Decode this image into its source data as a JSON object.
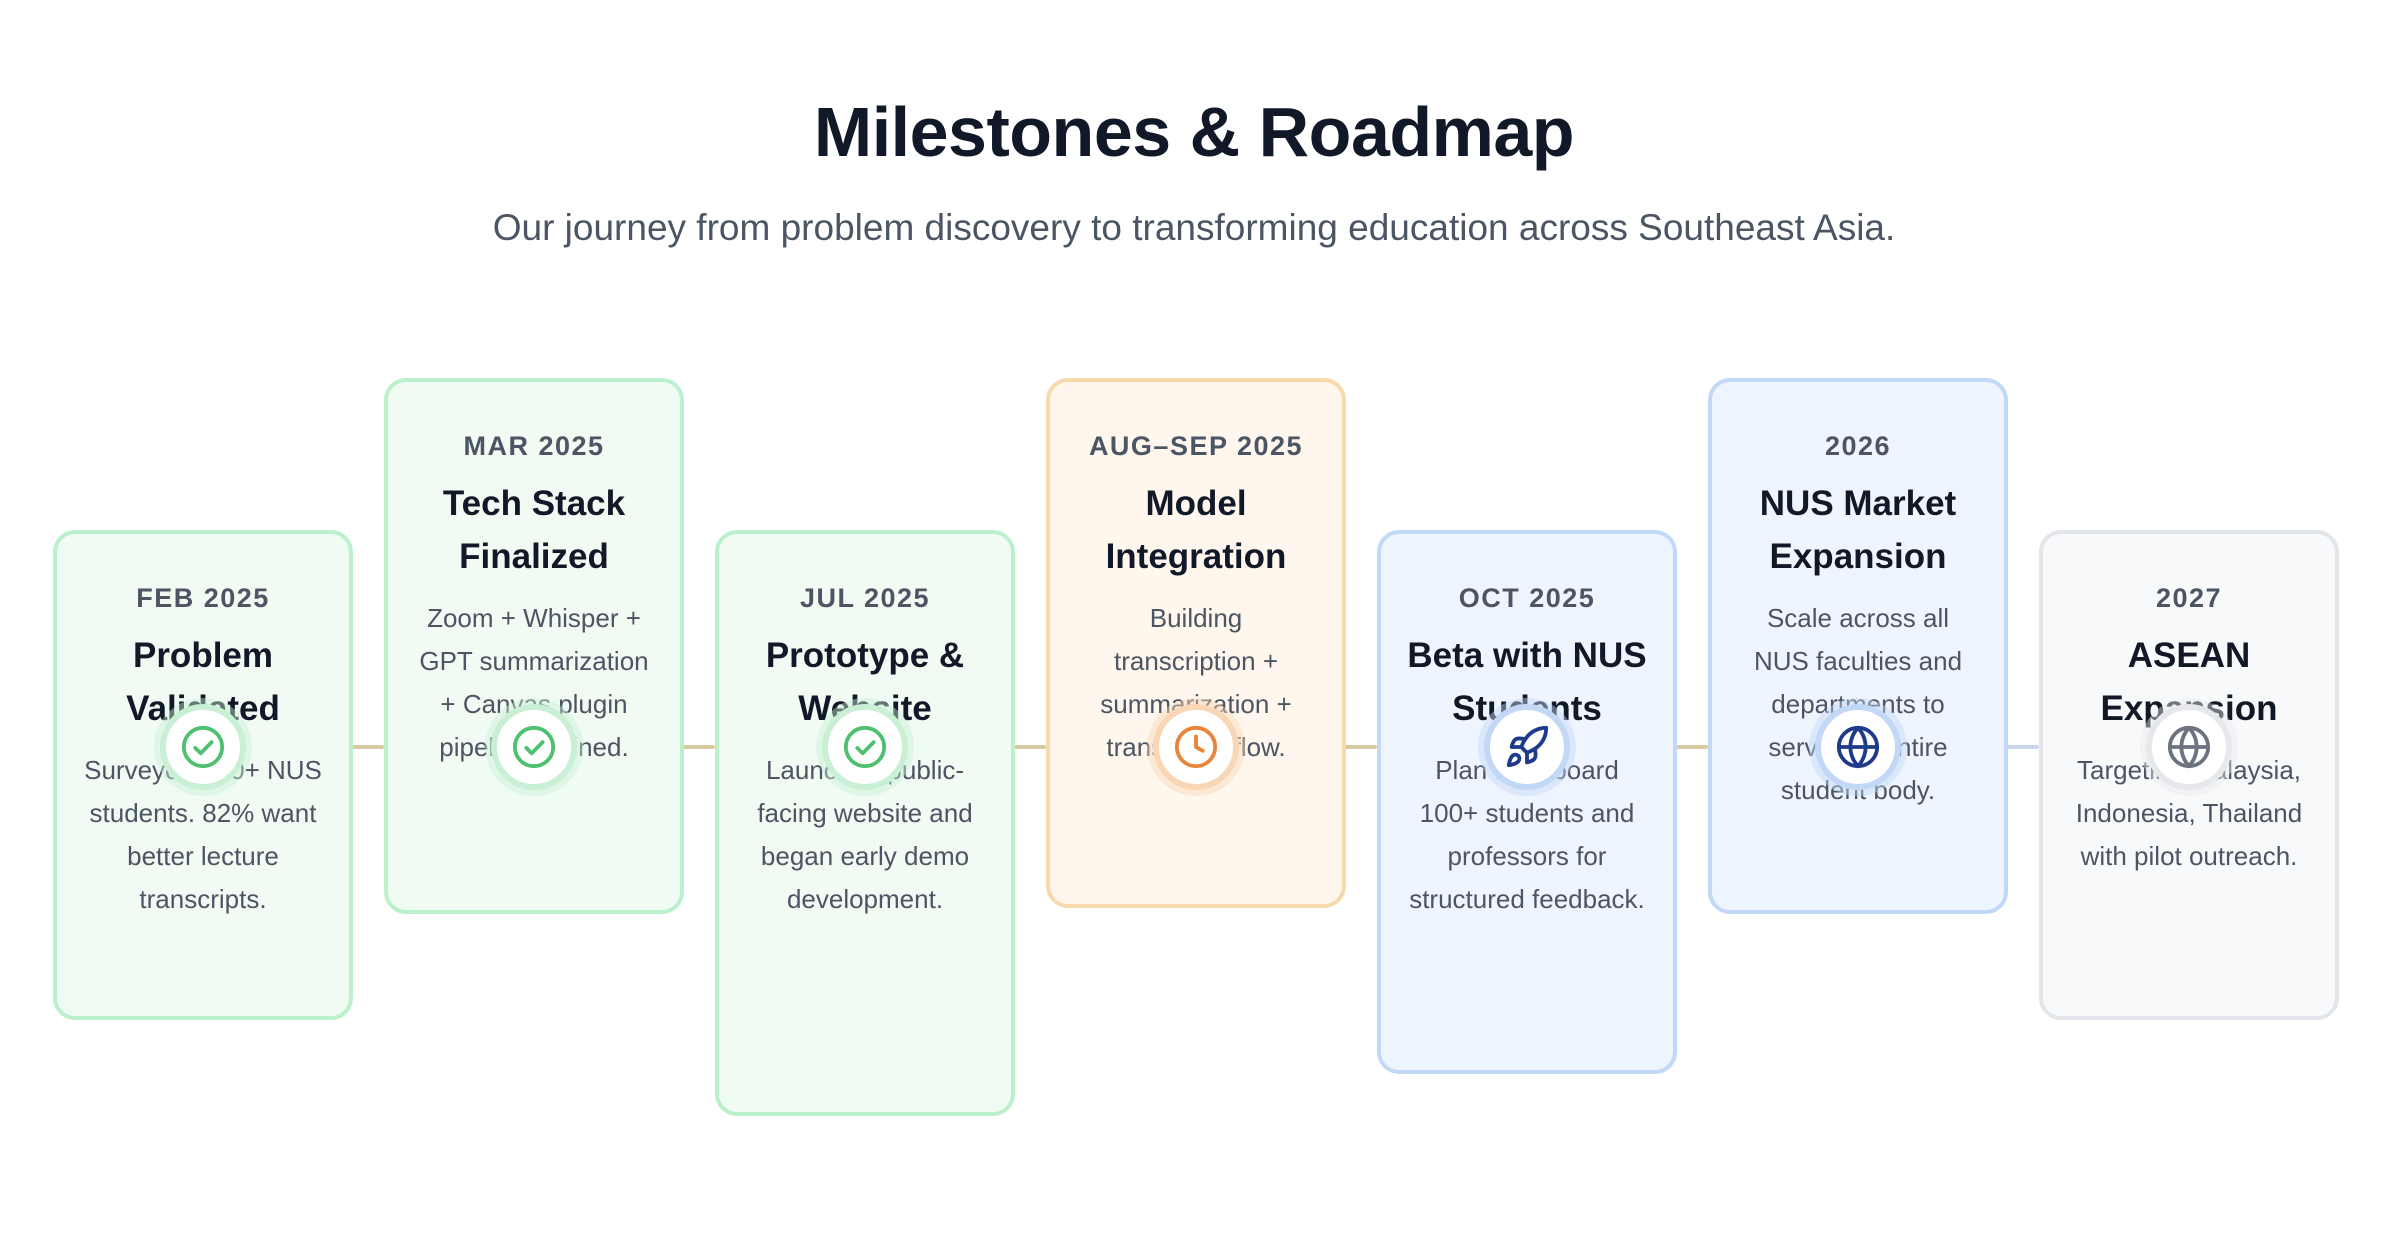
{
  "header": {
    "title": "Milestones & Roadmap",
    "subtitle": "Our journey from problem discovery to transforming education across Southeast Asia."
  },
  "colors": {
    "completed": "#4ec070",
    "in_progress": "#e9853a",
    "upcoming": "#1e3a8a",
    "future": "#6b7280"
  },
  "milestones": [
    {
      "date": "FEB 2025",
      "title": "Problem Validated",
      "description": "Surveyed 100+ NUS students. 82% want better lecture transcripts.",
      "icon": "check-circle-icon",
      "status": "completed"
    },
    {
      "date": "MAR 2025",
      "title": "Tech Stack Finalized",
      "description": "Zoom + Whisper + GPT summarization + Canvas plugin pipeline defined.",
      "icon": "check-circle-icon",
      "status": "completed"
    },
    {
      "date": "JUL 2025",
      "title": "Prototype & Website",
      "description": "Launched public-facing website and began early demo development.",
      "icon": "check-circle-icon",
      "status": "completed"
    },
    {
      "date": "AUG–SEP 2025",
      "title": "Model Integration",
      "description": "Building transcription + summarization + translation flow.",
      "icon": "clock-icon",
      "status": "in-progress"
    },
    {
      "date": "OCT 2025",
      "title": "Beta with NUS Students",
      "description": "Plan to onboard 100+ students and professors for structured feedback.",
      "icon": "rocket-icon",
      "status": "upcoming"
    },
    {
      "date": "2026",
      "title": "NUS Market Expansion",
      "description": "Scale across all NUS faculties and departments to serve the entire student body.",
      "icon": "globe-icon",
      "status": "upcoming"
    },
    {
      "date": "2027",
      "title": "ASEAN Expansion",
      "description": "Targeting Malaysia, Indonesia, Thailand with pilot outreach.",
      "icon": "globe-icon",
      "status": "future"
    }
  ]
}
